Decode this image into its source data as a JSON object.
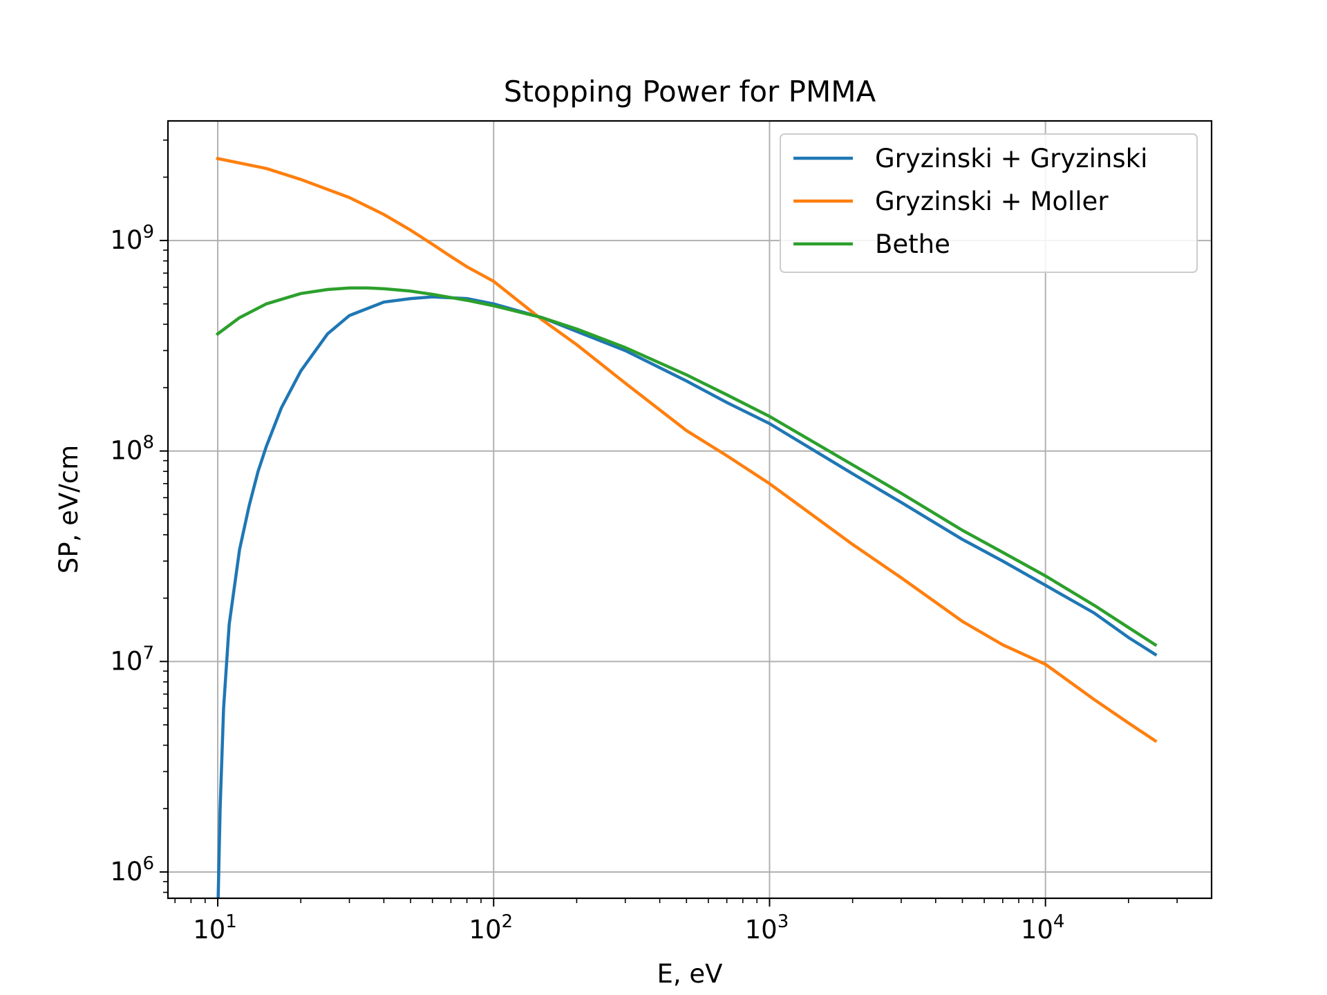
{
  "chart_data": {
    "type": "line",
    "title": "Stopping Power for PMMA",
    "xlabel": "E, eV",
    "ylabel": "SP, eV/cm",
    "xscale": "log",
    "yscale": "log",
    "xlim": [
      6.6,
      40000
    ],
    "ylim": [
      750000,
      3700000000
    ],
    "grid": true,
    "legend_position": "top-right",
    "x_ticks": [
      {
        "value": 10,
        "base": "10",
        "exp": "1"
      },
      {
        "value": 100,
        "base": "10",
        "exp": "2"
      },
      {
        "value": 1000,
        "base": "10",
        "exp": "3"
      },
      {
        "value": 10000,
        "base": "10",
        "exp": "4"
      }
    ],
    "y_ticks": [
      {
        "value": 1000000,
        "base": "10",
        "exp": "6"
      },
      {
        "value": 10000000,
        "base": "10",
        "exp": "7"
      },
      {
        "value": 100000000,
        "base": "10",
        "exp": "8"
      },
      {
        "value": 1000000000,
        "base": "10",
        "exp": "9"
      }
    ],
    "series": [
      {
        "name": "Gryzinski + Gryzinski",
        "color": "#1f77b4",
        "x": [
          10,
          10.2,
          10.5,
          11,
          12,
          13,
          14,
          15,
          17,
          20,
          25,
          30,
          40,
          50,
          60,
          80,
          100,
          150,
          200,
          300,
          500,
          700,
          1000,
          2000,
          3000,
          5000,
          7000,
          10000,
          15000,
          20000,
          25000
        ],
        "y": [
          600000,
          2000000,
          6000000,
          15000000,
          34000000,
          55000000,
          80000000,
          105000000,
          160000000,
          240000000,
          360000000,
          440000000,
          510000000,
          530000000,
          540000000,
          530000000,
          500000000,
          430000000,
          370000000,
          300000000,
          215000000,
          170000000,
          135000000,
          78000000,
          57000000,
          38000000,
          30000000,
          23000000,
          17000000,
          13000000,
          10800000
        ]
      },
      {
        "name": "Gryzinski + Moller",
        "color": "#ff7f0e",
        "x": [
          10,
          15,
          20,
          30,
          40,
          50,
          60,
          70,
          80,
          90,
          100,
          150,
          200,
          300,
          500,
          700,
          1000,
          2000,
          3000,
          5000,
          7000,
          10000,
          15000,
          20000,
          25000
        ],
        "y": [
          2450000000,
          2200000000,
          1950000000,
          1600000000,
          1330000000,
          1120000000,
          960000000,
          840000000,
          750000000,
          690000000,
          640000000,
          420000000,
          320000000,
          210000000,
          125000000,
          95000000,
          70000000,
          36000000,
          25000000,
          15500000,
          12000000,
          9700000,
          6600000,
          5100000,
          4200000
        ]
      },
      {
        "name": "Bethe",
        "color": "#2ca02c",
        "x": [
          10,
          12,
          15,
          20,
          25,
          30,
          35,
          40,
          50,
          60,
          80,
          100,
          150,
          200,
          300,
          500,
          700,
          1000,
          2000,
          3000,
          5000,
          7000,
          10000,
          15000,
          20000,
          25000
        ],
        "y": [
          360000000,
          430000000,
          500000000,
          560000000,
          585000000,
          595000000,
          595000000,
          590000000,
          575000000,
          555000000,
          520000000,
          490000000,
          430000000,
          380000000,
          310000000,
          230000000,
          185000000,
          146000000,
          86000000,
          63000000,
          42000000,
          33000000,
          25500000,
          18500000,
          14500000,
          12000000
        ]
      }
    ]
  }
}
